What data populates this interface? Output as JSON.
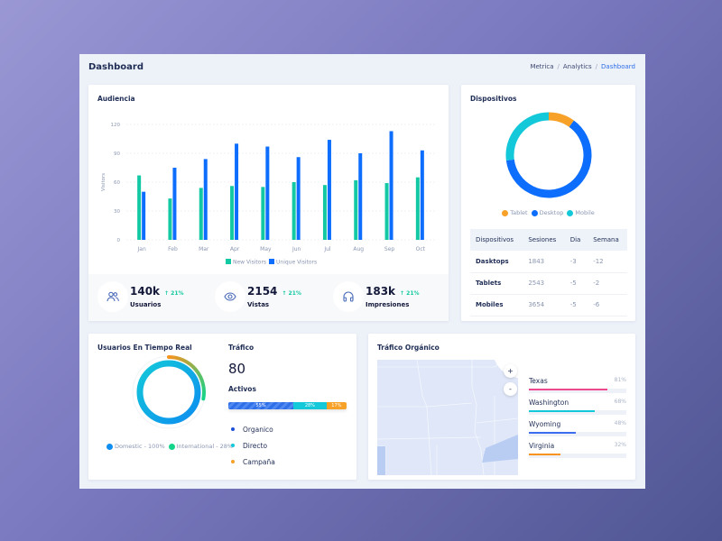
{
  "header": {
    "title": "Dashboard",
    "breadcrumb": [
      "Metrica",
      "Analytics",
      "Dashboard"
    ]
  },
  "audiencia": {
    "title": "Audiencia",
    "stats": [
      {
        "value": "140k",
        "change": "↑ 21%",
        "label": "Usuarios",
        "icon": "users-icon"
      },
      {
        "value": "2154",
        "change": "↑ 21%",
        "label": "Vistas",
        "icon": "eye-icon"
      },
      {
        "value": "183k",
        "change": "↑ 21%",
        "label": "Impresiones",
        "icon": "headphones-icon"
      }
    ]
  },
  "chart_data": {
    "type": "bar",
    "categories": [
      "Jan",
      "Feb",
      "Mar",
      "Apr",
      "May",
      "Jun",
      "Jul",
      "Aug",
      "Sep",
      "Oct"
    ],
    "series": [
      {
        "name": "New Visitors",
        "color": "#13c9a4",
        "values": [
          67,
          43,
          54,
          56,
          55,
          60,
          57,
          62,
          59,
          65
        ]
      },
      {
        "name": "Unique Visitors",
        "color": "#0d6efd",
        "values": [
          50,
          75,
          84,
          100,
          97,
          86,
          104,
          90,
          113,
          93
        ]
      }
    ],
    "ylabel": "Visitors",
    "ylim": [
      0,
      120
    ],
    "yticks": [
      0,
      30,
      60,
      90,
      120
    ],
    "grid": true,
    "legend": "bottom"
  },
  "dispositivos": {
    "title": "Dispositivos",
    "donut": [
      {
        "name": "Tablet",
        "value": 10,
        "color": "#f7a128"
      },
      {
        "name": "Desktop",
        "value": 63,
        "color": "#0d6efd"
      },
      {
        "name": "Mobile",
        "value": 27,
        "color": "#13c8d9"
      }
    ],
    "table": {
      "headers": [
        "Dispositivos",
        "Sesiones",
        "Dia",
        "Semana"
      ],
      "rows": [
        [
          "Dasktops",
          "1843",
          "-3",
          "-12"
        ],
        [
          "Tablets",
          "2543",
          "-5",
          "-2"
        ],
        [
          "Mobiles",
          "3654",
          "-5",
          "-6"
        ]
      ]
    }
  },
  "tiempo_real": {
    "title": "Usuarios En Tiempo Real",
    "legend": [
      {
        "label": "Domestic - 100%",
        "value": 100,
        "color": "#0d8ef0"
      },
      {
        "label": "International - 28%",
        "value": 28,
        "color": "#13d48a"
      }
    ]
  },
  "trafico": {
    "title": "Tráfico",
    "value": "80",
    "activos_label": "Activos",
    "bar": [
      {
        "label": "55%",
        "value": 55,
        "color": "#2f6fe8"
      },
      {
        "label": "28%",
        "value": 28,
        "color": "#13c8d9"
      },
      {
        "label": "17%",
        "value": 17,
        "color": "#f7a128"
      }
    ],
    "sources": [
      {
        "label": "Organico",
        "color": "#1d4fd8"
      },
      {
        "label": "Directo",
        "color": "#13c8d9"
      },
      {
        "label": "Campaña",
        "color": "#f7a128"
      }
    ]
  },
  "organico": {
    "title": "Tráfico Orgánico",
    "zoom_in": "+",
    "zoom_out": "-",
    "regions": [
      {
        "name": "Texas",
        "pct": "81%",
        "value": 81,
        "color": "#f0488e"
      },
      {
        "name": "Washington",
        "pct": "68%",
        "value": 68,
        "color": "#13c8d9"
      },
      {
        "name": "Wyoming",
        "pct": "48%",
        "value": 48,
        "color": "#3c6cf0"
      },
      {
        "name": "Virginia",
        "pct": "32%",
        "value": 32,
        "color": "#f7931e"
      }
    ]
  }
}
